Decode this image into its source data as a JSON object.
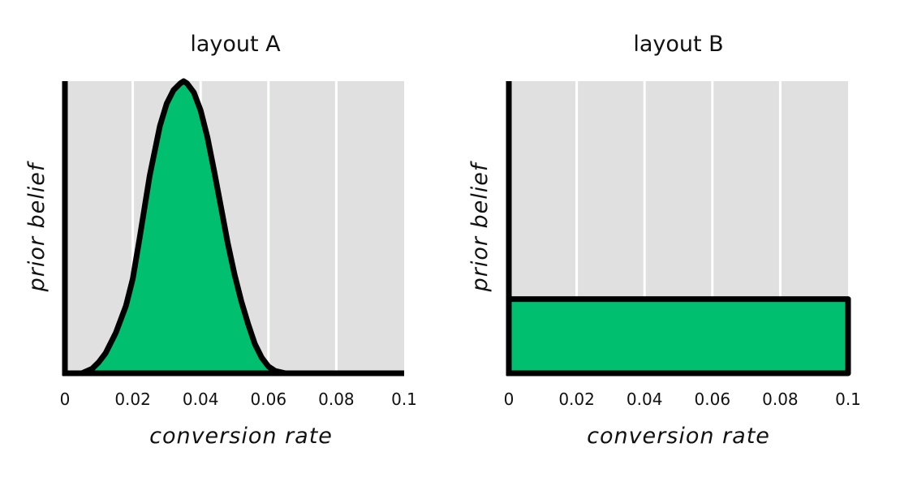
{
  "chart_data": [
    {
      "type": "area",
      "title": "layout A",
      "xlabel": "conversion rate",
      "ylabel": "prior belief",
      "xlim": [
        0,
        0.1
      ],
      "xticks": [
        0,
        0.02,
        0.04,
        0.06,
        0.08,
        0.1
      ],
      "xtick_labels": [
        "0",
        "0.02",
        "0.04",
        "0.06",
        "0.08",
        "0.1"
      ],
      "ylim": [
        0,
        1.3
      ],
      "grid": "vertical",
      "fill_color": "#00bf6f",
      "series": [
        {
          "x": [
            0,
            0.005,
            0.008,
            0.01,
            0.012,
            0.015,
            0.018,
            0.02,
            0.022,
            0.025,
            0.028,
            0.03,
            0.032,
            0.034,
            0.035,
            0.036,
            0.038,
            0.04,
            0.042,
            0.044,
            0.046,
            0.048,
            0.05,
            0.052,
            0.054,
            0.056,
            0.058,
            0.06,
            0.062,
            0.065,
            0.07,
            0.08,
            0.09,
            0.1
          ],
          "y": [
            0,
            0,
            0.02,
            0.05,
            0.09,
            0.18,
            0.3,
            0.42,
            0.6,
            0.88,
            1.1,
            1.2,
            1.26,
            1.29,
            1.3,
            1.29,
            1.25,
            1.17,
            1.05,
            0.9,
            0.74,
            0.58,
            0.44,
            0.32,
            0.22,
            0.13,
            0.07,
            0.03,
            0.01,
            0,
            0,
            0,
            0,
            0
          ]
        }
      ]
    },
    {
      "type": "area",
      "title": "layout B",
      "xlabel": "conversion rate",
      "ylabel": "prior belief",
      "xlim": [
        0,
        0.1
      ],
      "xticks": [
        0,
        0.02,
        0.04,
        0.06,
        0.08,
        0.1
      ],
      "xtick_labels": [
        "0",
        "0.02",
        "0.04",
        "0.06",
        "0.08",
        "0.1"
      ],
      "ylim": [
        0,
        1.3
      ],
      "grid": "vertical",
      "fill_color": "#00bf6f",
      "series": [
        {
          "x": [
            0,
            0.1
          ],
          "y": [
            0.33,
            0.33
          ]
        }
      ]
    }
  ],
  "colors": {
    "plot_background": "#dfe0df",
    "gridline": "#ffffff",
    "axis": "#000000",
    "fill": "#00bf6f",
    "outline": "#000000"
  }
}
